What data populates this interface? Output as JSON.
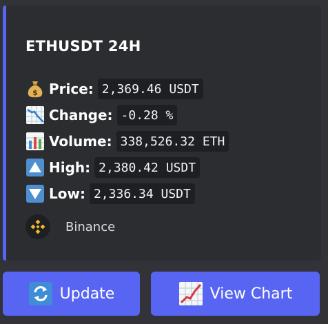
{
  "embed": {
    "accent": "#5865f2",
    "title": "ETHUSDT 24H",
    "rows": [
      {
        "icon": "money-bag-icon",
        "label": "Price:",
        "value": "2,369.46 USDT"
      },
      {
        "icon": "chart-decreasing-icon",
        "label": "Change:",
        "value": "-0.28 %"
      },
      {
        "icon": "bar-chart-icon",
        "label": "Volume:",
        "value": "338,526.32 ETH"
      },
      {
        "icon": "up-arrow-icon",
        "label": "High:",
        "value": "2,380.42 USDT"
      },
      {
        "icon": "down-arrow-icon",
        "label": "Low:",
        "value": "2,336.34 USDT"
      }
    ],
    "source": {
      "icon": "binance-logo-icon",
      "name": "Binance"
    }
  },
  "buttons": [
    {
      "icon": "refresh-icon",
      "label": "Update"
    },
    {
      "icon": "chart-increasing-icon",
      "label": "View Chart"
    }
  ]
}
